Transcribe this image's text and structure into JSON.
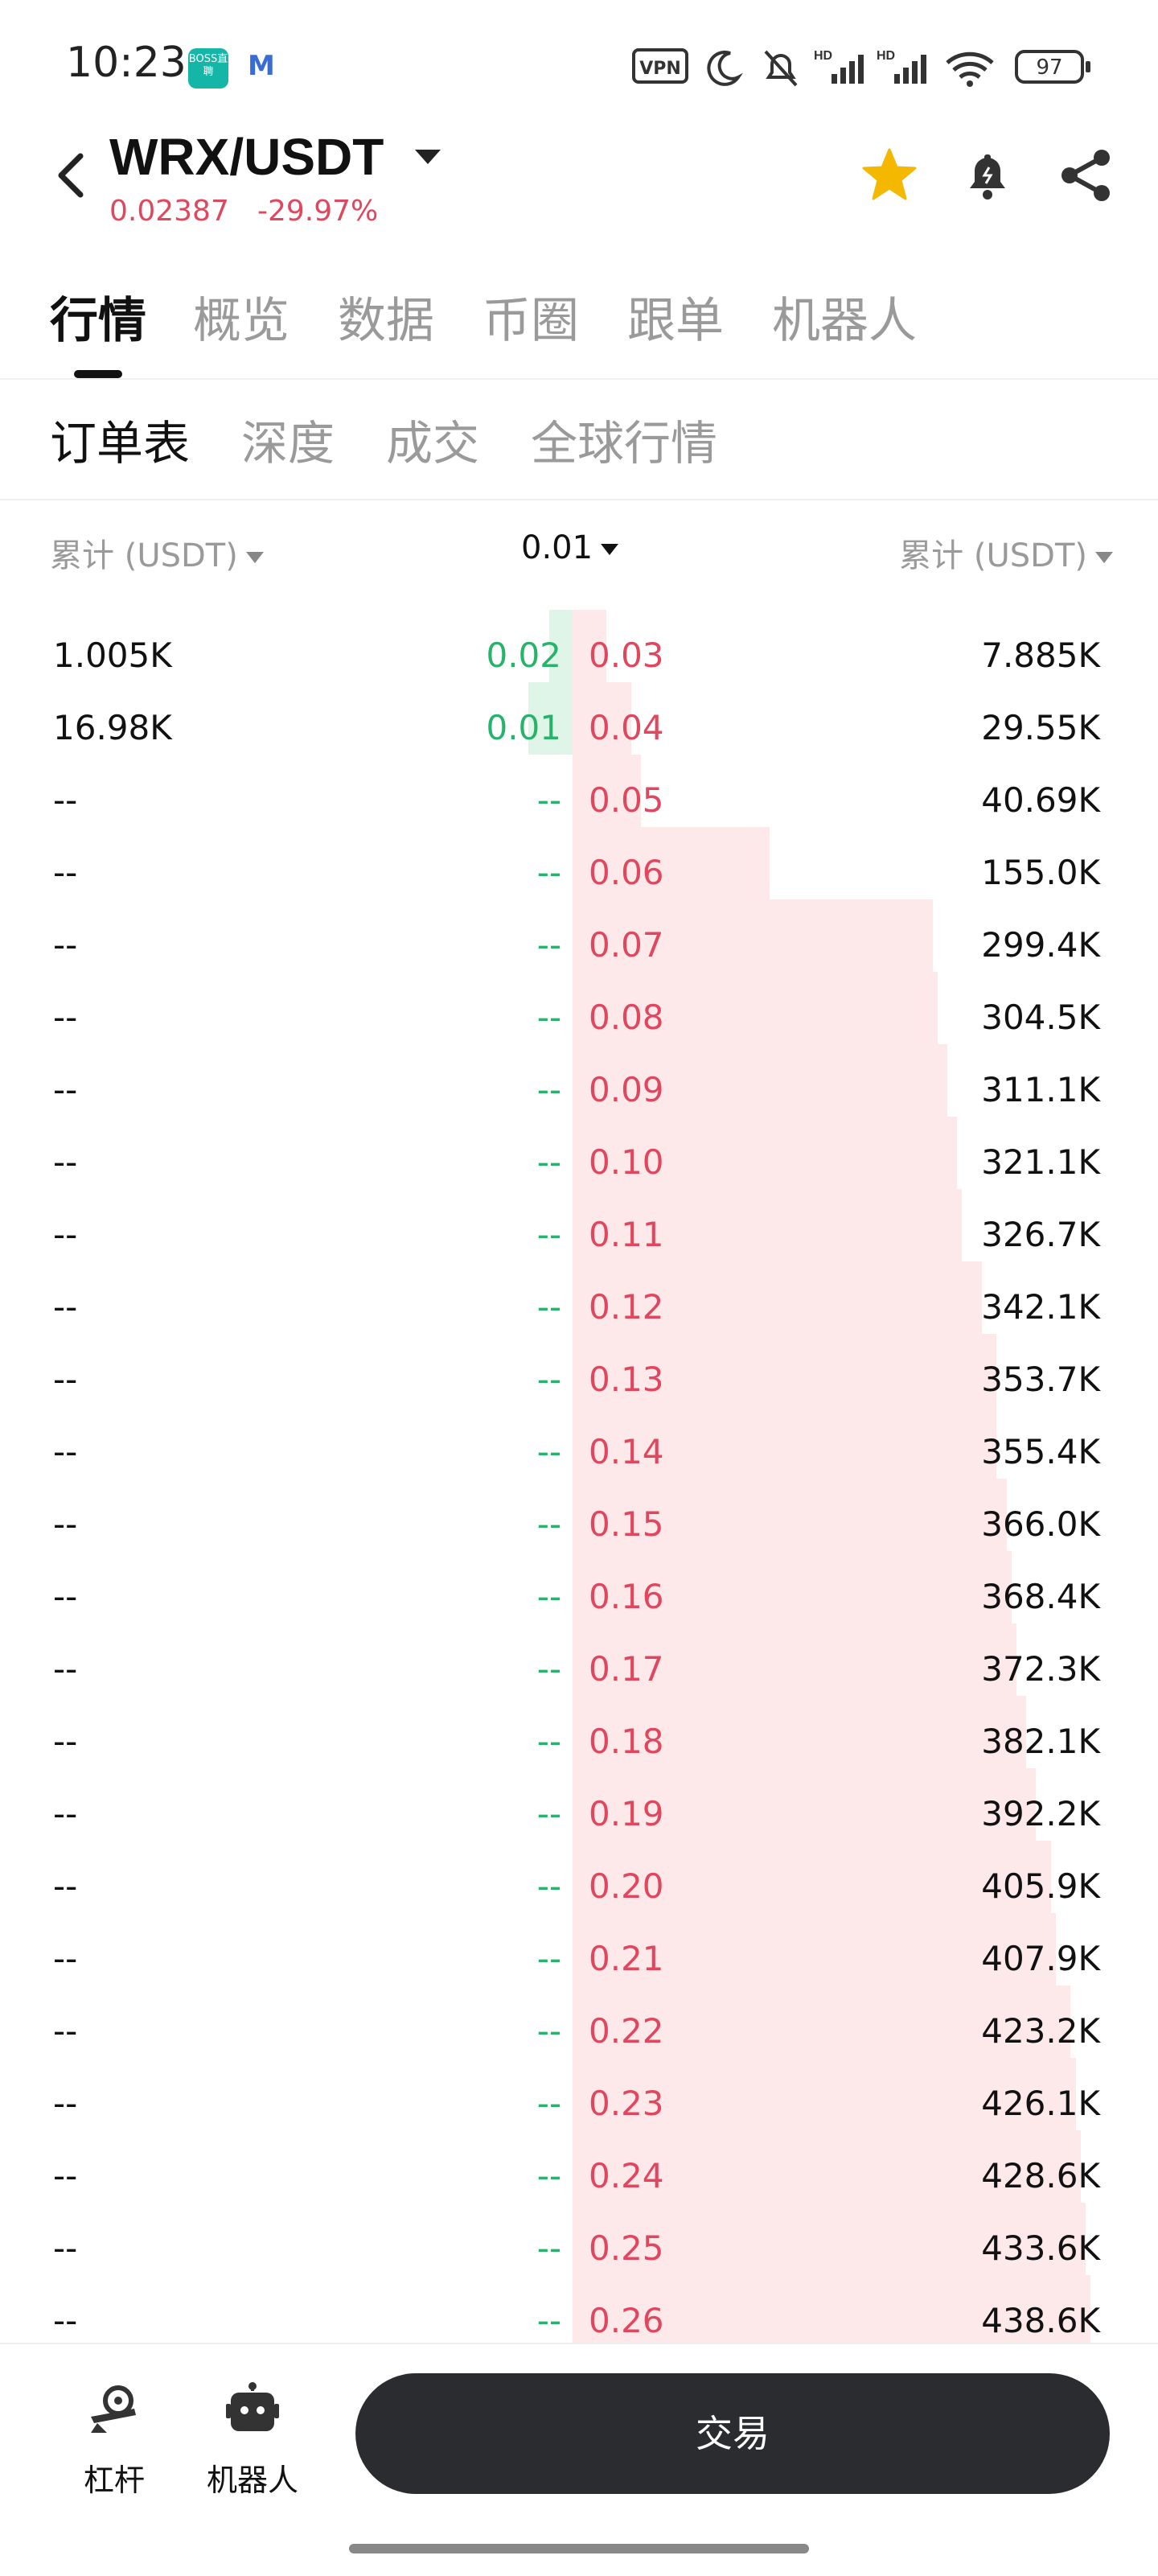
{
  "status_bar": {
    "time": "10:23",
    "app_badge": "BOSS直聘",
    "vpn": "VPN",
    "battery": "97"
  },
  "header": {
    "pair": "WRX/USDT",
    "price": "0.02387",
    "change": "-29.97%",
    "colors": {
      "down": "#e0475e",
      "up": "#27b36b",
      "star": "#f5b800"
    }
  },
  "tabs": [
    "行情",
    "概览",
    "数据",
    "币圈",
    "跟单",
    "机器人"
  ],
  "subtabs": [
    "订单表",
    "深度",
    "成交",
    "全球行情"
  ],
  "columns": {
    "left": "累计 (USDT)",
    "precision": "0.01",
    "right": "累计 (USDT)"
  },
  "order_book": [
    {
      "bid_total": "1.005K",
      "bid_price": "0.02",
      "ask_price": "0.03",
      "ask_total": "7.885K",
      "bid_depth": 0.07,
      "ask_depth": 0.02
    },
    {
      "bid_total": "16.98K",
      "bid_price": "0.01",
      "ask_price": "0.04",
      "ask_total": "29.55K",
      "bid_depth": 0.13,
      "ask_depth": 0.07
    },
    {
      "bid_total": "--",
      "bid_price": "--",
      "ask_price": "0.05",
      "ask_total": "40.69K",
      "bid_depth": 0,
      "ask_depth": 0.09
    },
    {
      "bid_total": "--",
      "bid_price": "--",
      "ask_price": "0.06",
      "ask_total": "155.0K",
      "bid_depth": 0,
      "ask_depth": 0.35
    },
    {
      "bid_total": "--",
      "bid_price": "--",
      "ask_price": "0.07",
      "ask_total": "299.4K",
      "bid_depth": 0,
      "ask_depth": 0.68
    },
    {
      "bid_total": "--",
      "bid_price": "--",
      "ask_price": "0.08",
      "ask_total": "304.5K",
      "bid_depth": 0,
      "ask_depth": 0.69
    },
    {
      "bid_total": "--",
      "bid_price": "--",
      "ask_price": "0.09",
      "ask_total": "311.1K",
      "bid_depth": 0,
      "ask_depth": 0.71
    },
    {
      "bid_total": "--",
      "bid_price": "--",
      "ask_price": "0.10",
      "ask_total": "321.1K",
      "bid_depth": 0,
      "ask_depth": 0.73
    },
    {
      "bid_total": "--",
      "bid_price": "--",
      "ask_price": "0.11",
      "ask_total": "326.7K",
      "bid_depth": 0,
      "ask_depth": 0.74
    },
    {
      "bid_total": "--",
      "bid_price": "--",
      "ask_price": "0.12",
      "ask_total": "342.1K",
      "bid_depth": 0,
      "ask_depth": 0.78
    },
    {
      "bid_total": "--",
      "bid_price": "--",
      "ask_price": "0.13",
      "ask_total": "353.7K",
      "bid_depth": 0,
      "ask_depth": 0.81
    },
    {
      "bid_total": "--",
      "bid_price": "--",
      "ask_price": "0.14",
      "ask_total": "355.4K",
      "bid_depth": 0,
      "ask_depth": 0.81
    },
    {
      "bid_total": "--",
      "bid_price": "--",
      "ask_price": "0.15",
      "ask_total": "366.0K",
      "bid_depth": 0,
      "ask_depth": 0.83
    },
    {
      "bid_total": "--",
      "bid_price": "--",
      "ask_price": "0.16",
      "ask_total": "368.4K",
      "bid_depth": 0,
      "ask_depth": 0.84
    },
    {
      "bid_total": "--",
      "bid_price": "--",
      "ask_price": "0.17",
      "ask_total": "372.3K",
      "bid_depth": 0,
      "ask_depth": 0.85
    },
    {
      "bid_total": "--",
      "bid_price": "--",
      "ask_price": "0.18",
      "ask_total": "382.1K",
      "bid_depth": 0,
      "ask_depth": 0.87
    },
    {
      "bid_total": "--",
      "bid_price": "--",
      "ask_price": "0.19",
      "ask_total": "392.2K",
      "bid_depth": 0,
      "ask_depth": 0.89
    },
    {
      "bid_total": "--",
      "bid_price": "--",
      "ask_price": "0.20",
      "ask_total": "405.9K",
      "bid_depth": 0,
      "ask_depth": 0.92
    },
    {
      "bid_total": "--",
      "bid_price": "--",
      "ask_price": "0.21",
      "ask_total": "407.9K",
      "bid_depth": 0,
      "ask_depth": 0.93
    },
    {
      "bid_total": "--",
      "bid_price": "--",
      "ask_price": "0.22",
      "ask_total": "423.2K",
      "bid_depth": 0,
      "ask_depth": 0.96
    },
    {
      "bid_total": "--",
      "bid_price": "--",
      "ask_price": "0.23",
      "ask_total": "426.1K",
      "bid_depth": 0,
      "ask_depth": 0.97
    },
    {
      "bid_total": "--",
      "bid_price": "--",
      "ask_price": "0.24",
      "ask_total": "428.6K",
      "bid_depth": 0,
      "ask_depth": 0.98
    },
    {
      "bid_total": "--",
      "bid_price": "--",
      "ask_price": "0.25",
      "ask_total": "433.6K",
      "bid_depth": 0,
      "ask_depth": 0.99
    },
    {
      "bid_total": "--",
      "bid_price": "--",
      "ask_price": "0.26",
      "ask_total": "438.6K",
      "bid_depth": 0,
      "ask_depth": 1.0
    }
  ],
  "bottom_bar": {
    "leverage": "杠杆",
    "robot": "机器人",
    "trade": "交易"
  }
}
